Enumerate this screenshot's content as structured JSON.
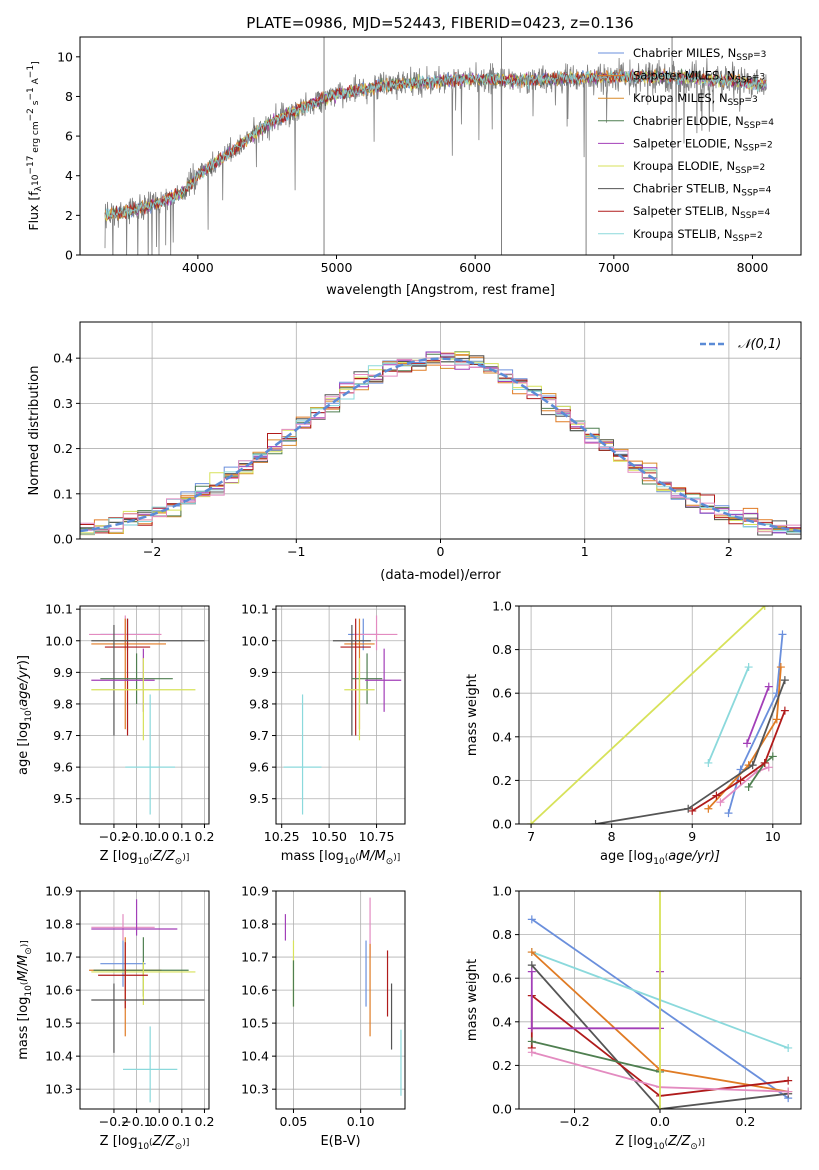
{
  "figure_title": "PLATE=0986, MJD=52443, FIBERID=0423, z=0.136",
  "colors": {
    "chabrier_miles": "#6a8fdc",
    "salpeter_miles": "#e07b24",
    "kroupa_miles": "#d98a2a",
    "chabrier_elodie": "#4f7f50",
    "salpeter_elodie": "#a23fb8",
    "kroupa_elodie": "#d7e25a",
    "chabrier_stelib": "#555555",
    "salpeter_stelib": "#b01b1b",
    "kroupa_stelib": "#8bd9dc",
    "pink": "#e38bc0",
    "normal": "#5b8bd6"
  },
  "chart_data": [
    {
      "id": "spectrum",
      "type": "line",
      "title": "PLATE=0986, MJD=52443, FIBERID=0423, z=0.136",
      "xlabel": "wavelength [Angstrom, rest frame]",
      "ylabel_parts": [
        "Flux [f",
        "λ",
        "10",
        "−17",
        " erg cm",
        "−2",
        " s",
        "−1",
        " A",
        "−1",
        "]"
      ],
      "xlim": [
        3150,
        8350
      ],
      "ylim": [
        0,
        11
      ],
      "xticks": [
        4000,
        5000,
        6000,
        7000,
        8000
      ],
      "yticks": [
        0,
        2,
        4,
        6,
        8,
        10
      ],
      "legend_position": "top-right",
      "legend": [
        {
          "name": "Chabrier MILES, N",
          "n": "3",
          "color": "#6a8fdc"
        },
        {
          "name": "Salpeter MILES, N",
          "n": "3",
          "color": "#e07b24"
        },
        {
          "name": "Kroupa MILES, N",
          "n": "3",
          "color": "#d98a2a"
        },
        {
          "name": "Chabrier ELODIE, N",
          "n": "4",
          "color": "#4f7f50"
        },
        {
          "name": "Salpeter ELODIE, N",
          "n": "2",
          "color": "#a23fb8"
        },
        {
          "name": "Kroupa ELODIE, N",
          "n": "2",
          "color": "#d7e25a"
        },
        {
          "name": "Chabrier STELIB, N",
          "n": "4",
          "color": "#555555"
        },
        {
          "name": "Salpeter STELIB, N",
          "n": "4",
          "color": "#b01b1b"
        },
        {
          "name": "Kroupa STELIB, N",
          "n": "2",
          "color": "#8bd9dc"
        }
      ],
      "legend_sub": "SSP",
      "continuum": {
        "x": [
          3330,
          3500,
          3700,
          3900,
          4000,
          4200,
          4500,
          4800,
          5000,
          5300,
          5600,
          6000,
          6300,
          6600,
          7000,
          7400,
          7800,
          8100
        ],
        "y": [
          2.0,
          2.2,
          2.6,
          3.2,
          4.0,
          5.0,
          6.6,
          7.6,
          8.1,
          8.5,
          8.7,
          8.9,
          8.8,
          8.9,
          9.0,
          9.0,
          8.8,
          8.6
        ]
      },
      "spikes": [
        {
          "x": 4910,
          "y0": 0,
          "y1": 11
        },
        {
          "x": 6190,
          "y0": 0,
          "y1": 11
        },
        {
          "x": 6800,
          "y0": 0,
          "y1": 9
        },
        {
          "x": 7420,
          "y0": 0,
          "y1": 11
        }
      ]
    },
    {
      "id": "residuals",
      "type": "histogram",
      "xlabel": "(data-model)/error",
      "ylabel": "Normed distribution",
      "xlim": [
        -2.5,
        2.5
      ],
      "ylim": [
        0,
        0.48
      ],
      "xticks": [
        -2,
        -1,
        0,
        1,
        2
      ],
      "yticks": [
        0.0,
        0.1,
        0.2,
        0.3,
        0.4
      ],
      "legend_position": "top-right",
      "legend": [
        {
          "name": "𝒩(0,1)",
          "color": "#5b8bd6"
        }
      ],
      "bin_width": 0.1
    },
    {
      "id": "age_vs_z",
      "type": "errorbar",
      "xlabel_parts": [
        "Z [log",
        "10",
        "(Z/Z",
        "⊙",
        ")]"
      ],
      "ylabel_parts": [
        "age  [log",
        "10",
        "(age/yr)]"
      ],
      "xlim": [
        -0.35,
        0.22
      ],
      "ylim": [
        9.42,
        10.11
      ],
      "xticks": [
        -0.2,
        -0.1,
        0.0,
        0.1,
        0.2
      ],
      "yticks": [
        9.5,
        9.6,
        9.7,
        9.8,
        9.9,
        10.0,
        10.1
      ],
      "points": [
        {
          "x": -0.14,
          "xerr": [
            0.12,
            0.13
          ],
          "y": 10.02,
          "yerr": [
            0.05,
            0.05
          ],
          "color": "#6a8fdc"
        },
        {
          "x": -0.15,
          "xerr": [
            0.16,
            0.16
          ],
          "y": 10.02,
          "yerr": [
            0.05,
            0.06
          ],
          "color": "#e38bc0"
        },
        {
          "x": -0.15,
          "xerr": [
            0.15,
            0.18
          ],
          "y": 9.99,
          "yerr": [
            0.27,
            0.08
          ],
          "color": "#e07b24"
        },
        {
          "x": -0.14,
          "xerr": [
            0.1,
            0.1
          ],
          "y": 9.98,
          "yerr": [
            0.28,
            0.09
          ],
          "color": "#b01b1b"
        },
        {
          "x": -0.2,
          "xerr": [
            0.1,
            0.4
          ],
          "y": 10.0,
          "yerr": [
            0.3,
            0.05
          ],
          "color": "#555555"
        },
        {
          "x": -0.1,
          "xerr": [
            0.16,
            0.16
          ],
          "y": 9.88,
          "yerr": [
            0.08,
            0.08
          ],
          "color": "#4f7f50"
        },
        {
          "x": -0.07,
          "xerr": [
            0.23,
            0.05
          ],
          "y": 9.875,
          "yerr": [
            0.1,
            0.1
          ],
          "color": "#a23fb8"
        },
        {
          "x": -0.07,
          "xerr": [
            0.23,
            0.23
          ],
          "y": 9.845,
          "yerr": [
            0.16,
            0.1
          ],
          "color": "#d7e25a"
        },
        {
          "x": -0.04,
          "xerr": [
            0.11,
            0.11
          ],
          "y": 9.6,
          "yerr": [
            0.15,
            0.23
          ],
          "color": "#8bd9dc"
        }
      ]
    },
    {
      "id": "age_vs_mass",
      "type": "errorbar",
      "xlabel_parts": [
        "mass [log",
        "10",
        "(M/M",
        "⊙",
        ")]"
      ],
      "xlim": [
        10.22,
        10.9
      ],
      "ylim": [
        9.42,
        10.11
      ],
      "xticks": [
        10.25,
        10.5,
        10.75
      ],
      "yticks": [
        9.5,
        9.6,
        9.7,
        9.8,
        9.9,
        10.0,
        10.1
      ],
      "points": [
        {
          "x": 10.68,
          "xerr": [
            0.08,
            0.08
          ],
          "y": 10.02,
          "yerr": [
            0.05,
            0.05
          ],
          "color": "#6a8fdc"
        },
        {
          "x": 10.75,
          "xerr": [
            0.12,
            0.11
          ],
          "y": 10.02,
          "yerr": [
            0.05,
            0.06
          ],
          "color": "#e38bc0"
        },
        {
          "x": 10.66,
          "xerr": [
            0.08,
            0.08
          ],
          "y": 9.99,
          "yerr": [
            0.27,
            0.08
          ],
          "color": "#e07b24"
        },
        {
          "x": 10.64,
          "xerr": [
            0.08,
            0.08
          ],
          "y": 9.98,
          "yerr": [
            0.28,
            0.09
          ],
          "color": "#b01b1b"
        },
        {
          "x": 10.62,
          "xerr": [
            0.1,
            0.1
          ],
          "y": 10.0,
          "yerr": [
            0.3,
            0.05
          ],
          "color": "#555555"
        },
        {
          "x": 10.7,
          "xerr": [
            0.08,
            0.08
          ],
          "y": 9.88,
          "yerr": [
            0.08,
            0.08
          ],
          "color": "#4f7f50"
        },
        {
          "x": 10.79,
          "xerr": [
            0.1,
            0.09
          ],
          "y": 9.875,
          "yerr": [
            0.1,
            0.1
          ],
          "color": "#a23fb8"
        },
        {
          "x": 10.66,
          "xerr": [
            0.08,
            0.08
          ],
          "y": 9.845,
          "yerr": [
            0.16,
            0.1
          ],
          "color": "#d7e25a"
        },
        {
          "x": 10.36,
          "xerr": [
            0.1,
            0.1
          ],
          "y": 9.6,
          "yerr": [
            0.15,
            0.23
          ],
          "color": "#8bd9dc"
        }
      ]
    },
    {
      "id": "weight_vs_age",
      "type": "line",
      "xlabel_parts": [
        "age  [log",
        "10",
        "(age/yr)]"
      ],
      "ylabel": "mass weight",
      "xlim": [
        6.85,
        10.35
      ],
      "ylim": [
        0,
        1.0
      ],
      "xticks": [
        7,
        8,
        9,
        10
      ],
      "yticks": [
        0.0,
        0.2,
        0.4,
        0.6,
        0.8,
        1.0
      ],
      "series": [
        {
          "color": "#d7e25a",
          "x": [
            7.0,
            9.9
          ],
          "y": [
            0.0,
            1.0
          ]
        },
        {
          "color": "#8bd9dc",
          "x": [
            9.2,
            9.7
          ],
          "y": [
            0.28,
            0.72
          ]
        },
        {
          "color": "#6a8fdc",
          "x": [
            9.45,
            9.6,
            10.05,
            10.12
          ],
          "y": [
            0.05,
            0.25,
            0.6,
            0.87
          ]
        },
        {
          "color": "#e07b24",
          "x": [
            9.2,
            9.7,
            10.05,
            10.1
          ],
          "y": [
            0.07,
            0.27,
            0.48,
            0.72
          ]
        },
        {
          "color": "#e38bc0",
          "x": [
            9.35,
            9.8,
            9.95
          ],
          "y": [
            0.1,
            0.24,
            0.26
          ]
        },
        {
          "color": "#a23fb8",
          "x": [
            9.68,
            9.95
          ],
          "y": [
            0.37,
            0.63
          ]
        },
        {
          "color": "#4f7f50",
          "x": [
            9.7,
            9.9,
            10.0
          ],
          "y": [
            0.17,
            0.28,
            0.31
          ]
        },
        {
          "color": "#b01b1b",
          "x": [
            9.0,
            9.3,
            9.6,
            9.9,
            10.15
          ],
          "y": [
            0.06,
            0.13,
            0.2,
            0.28,
            0.52
          ]
        },
        {
          "color": "#555555",
          "x": [
            7.8,
            8.95,
            9.75,
            10.15
          ],
          "y": [
            0.0,
            0.07,
            0.27,
            0.66
          ]
        }
      ]
    },
    {
      "id": "mass_vs_z",
      "type": "errorbar",
      "xlabel_parts": [
        "Z [log",
        "10",
        "(Z/Z",
        "⊙",
        ")]"
      ],
      "ylabel_parts": [
        "mass [log",
        "10",
        "(M/M",
        "⊙",
        ")]"
      ],
      "xlim": [
        -0.35,
        0.22
      ],
      "ylim": [
        10.24,
        10.9
      ],
      "xticks": [
        -0.2,
        -0.1,
        0.0,
        0.1,
        0.2
      ],
      "yticks": [
        10.3,
        10.4,
        10.5,
        10.6,
        10.7,
        10.8,
        10.9
      ],
      "points": [
        {
          "x": -0.16,
          "xerr": [
            0.14,
            0.14
          ],
          "y": 10.79,
          "yerr": [
            0.04,
            0.04
          ],
          "color": "#e38bc0"
        },
        {
          "x": -0.1,
          "xerr": [
            0.2,
            0.18
          ],
          "y": 10.785,
          "yerr": [
            0.02,
            0.09
          ],
          "color": "#a23fb8"
        },
        {
          "x": -0.16,
          "xerr": [
            0.1,
            0.1
          ],
          "y": 10.68,
          "yerr": [
            0.07,
            0.07
          ],
          "color": "#6a8fdc"
        },
        {
          "x": -0.15,
          "xerr": [
            0.16,
            0.16
          ],
          "y": 10.66,
          "yerr": [
            0.2,
            0.1
          ],
          "color": "#e07b24"
        },
        {
          "x": -0.07,
          "xerr": [
            0.22,
            0.2
          ],
          "y": 10.66,
          "yerr": [
            0.08,
            0.1
          ],
          "color": "#4f7f50"
        },
        {
          "x": -0.07,
          "xerr": [
            0.23,
            0.23
          ],
          "y": 10.655,
          "yerr": [
            0.1,
            0.03
          ],
          "color": "#d7e25a"
        },
        {
          "x": -0.15,
          "xerr": [
            0.12,
            0.1
          ],
          "y": 10.645,
          "yerr": [
            0.1,
            0.1
          ],
          "color": "#b01b1b"
        },
        {
          "x": -0.2,
          "xerr": [
            0.1,
            0.4
          ],
          "y": 10.57,
          "yerr": [
            0.16,
            0.05
          ],
          "color": "#555555"
        },
        {
          "x": -0.04,
          "xerr": [
            0.12,
            0.12
          ],
          "y": 10.36,
          "yerr": [
            0.1,
            0.13
          ],
          "color": "#8bd9dc"
        }
      ]
    },
    {
      "id": "mass_vs_ebv",
      "type": "errorbar",
      "xlabel": "E(B-V)",
      "xlim": [
        0.037,
        0.133
      ],
      "ylim": [
        10.24,
        10.9
      ],
      "xticks": [
        0.05,
        0.1
      ],
      "yticks": [
        10.3,
        10.4,
        10.5,
        10.6,
        10.7,
        10.8,
        10.9
      ],
      "points": [
        {
          "x": 0.044,
          "y": 10.79,
          "yerr": [
            0.04,
            0.04
          ],
          "color": "#a23fb8"
        },
        {
          "x": 0.05,
          "y": 10.65,
          "yerr": [
            0.1,
            0.1
          ],
          "color": "#d7e25a"
        },
        {
          "x": 0.05,
          "y": 10.62,
          "yerr": [
            0.07,
            0.07
          ],
          "color": "#4f7f50"
        },
        {
          "x": 0.104,
          "y": 10.65,
          "yerr": [
            0.1,
            0.1
          ],
          "color": "#6a8fdc"
        },
        {
          "x": 0.107,
          "y": 10.79,
          "yerr": [
            0.09,
            0.09
          ],
          "color": "#e38bc0"
        },
        {
          "x": 0.107,
          "y": 10.6,
          "yerr": [
            0.14,
            0.14
          ],
          "color": "#e07b24"
        },
        {
          "x": 0.12,
          "y": 10.62,
          "yerr": [
            0.1,
            0.1
          ],
          "color": "#b01b1b"
        },
        {
          "x": 0.123,
          "y": 10.52,
          "yerr": [
            0.1,
            0.1
          ],
          "color": "#555555"
        },
        {
          "x": 0.13,
          "y": 10.38,
          "yerr": [
            0.1,
            0.1
          ],
          "color": "#8bd9dc"
        }
      ]
    },
    {
      "id": "weight_vs_z",
      "type": "line",
      "xlabel_parts": [
        "Z [log",
        "10",
        "(Z/Z",
        "⊙",
        ")]"
      ],
      "ylabel": "mass weight",
      "xlim": [
        -0.33,
        0.33
      ],
      "ylim": [
        0,
        1.0
      ],
      "xticks": [
        -0.2,
        0.0,
        0.2
      ],
      "yticks": [
        0.0,
        0.2,
        0.4,
        0.6,
        0.8,
        1.0
      ],
      "series": [
        {
          "color": "#6a8fdc",
          "x": [
            -0.3,
            0.3
          ],
          "y": [
            0.87,
            0.05
          ]
        },
        {
          "color": "#8bd9dc",
          "x": [
            -0.3,
            0.3
          ],
          "y": [
            0.72,
            0.28
          ]
        },
        {
          "color": "#e07b24",
          "x": [
            -0.3,
            0.0,
            0.3
          ],
          "y": [
            0.72,
            0.18,
            0.08
          ]
        },
        {
          "color": "#555555",
          "x": [
            -0.3,
            0.0,
            0.3
          ],
          "y": [
            0.66,
            0.0,
            0.07
          ]
        },
        {
          "color": "#b01b1b",
          "x": [
            -0.3,
            -0.3,
            0.0,
            0.3
          ],
          "y": [
            0.28,
            0.52,
            0.06,
            0.13
          ]
        },
        {
          "color": "#4f7f50",
          "x": [
            -0.3,
            0.0
          ],
          "y": [
            0.31,
            0.17
          ]
        },
        {
          "color": "#e38bc0",
          "x": [
            -0.3,
            0.0,
            0.3
          ],
          "y": [
            0.26,
            0.1,
            0.08
          ]
        },
        {
          "color": "#a23fb8",
          "x": [
            -0.3,
            -0.3,
            0.0,
            0.0
          ],
          "y": [
            0.63,
            0.37,
            0.37,
            0.63
          ]
        },
        {
          "color": "#d7e25a",
          "x": [
            0.0,
            0.0
          ],
          "y": [
            0.0,
            1.0
          ]
        }
      ]
    }
  ]
}
